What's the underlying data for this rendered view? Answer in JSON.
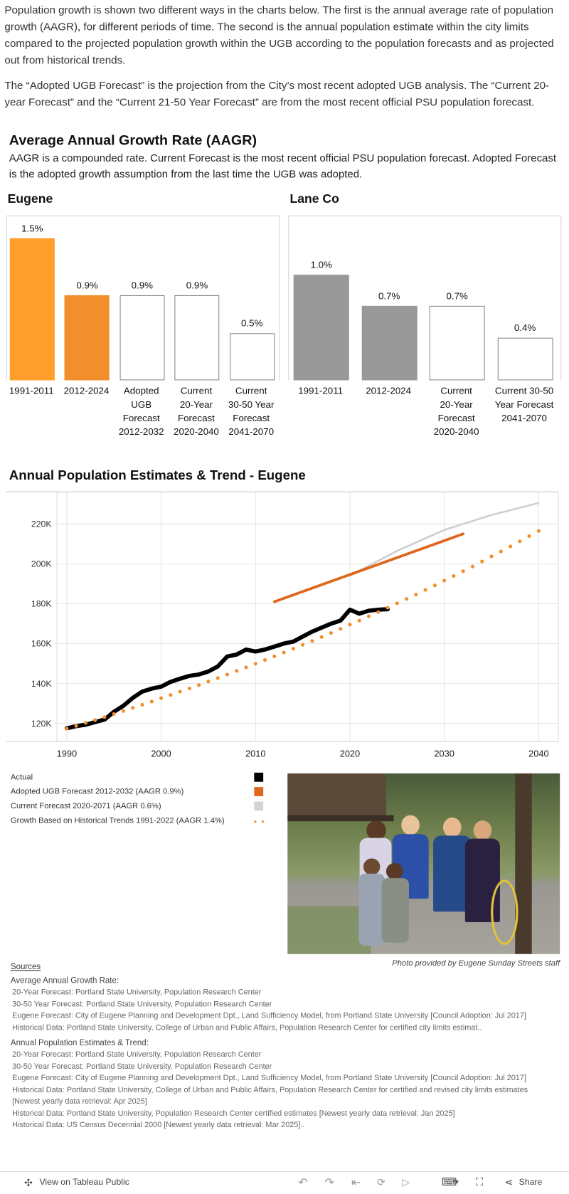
{
  "intro": {
    "paragraph1": "Population growth is shown two different ways in the charts below. The first is the annual average rate of population growth (AAGR), for different periods of time. The second is the annual population estimate within the city limits compared to the projected population growth within the UGB according to the population forecasts and as projected out from historical trends.",
    "paragraph2": "The “Adopted UGB Forecast” is the projection from the City’s most recent adopted UGB analysis. The “Current 20-year Forecast” and the “Current 21-50 Year Forecast” are from the most recent official PSU population forecast."
  },
  "aagr": {
    "title": "Average Annual Growth Rate (AAGR)",
    "description": "AAGR is a compounded rate. Current Forecast is the most recent official PSU population forecast. Adopted Forecast is the adopted growth assumption from the last time the UGB was adopted."
  },
  "chart_data": [
    {
      "type": "bar",
      "title": "Eugene",
      "categories": [
        "1991-2011",
        "2012-2024",
        "Adopted UGB Forecast 2012-2032",
        "Current 20-Year Forecast 2020-2040",
        "Current 30-50 Year Forecast 2041-2070"
      ],
      "category_lines": [
        [
          "1991-2011"
        ],
        [
          "2012-2024"
        ],
        [
          "Adopted",
          "UGB",
          "Forecast",
          "2012-2032"
        ],
        [
          "Current",
          "20-Year",
          "Forecast",
          "2020-2040"
        ],
        [
          "Current",
          "30-50 Year",
          "Forecast",
          "2041-2070"
        ]
      ],
      "values": [
        1.5,
        0.9,
        0.9,
        0.9,
        0.5
      ],
      "labels": [
        "1.5%",
        "0.9%",
        "0.9%",
        "0.9%",
        "0.5%"
      ],
      "colors": [
        "#FF9E2A",
        "#F28E2B",
        "#FFFFFF",
        "#FFFFFF",
        "#FFFFFF"
      ],
      "ylim": [
        0,
        1.73
      ]
    },
    {
      "type": "bar",
      "title": "Lane Co",
      "categories": [
        "1991-2011",
        "2012-2024",
        "Current 20-Year Forecast 2020-2040",
        "Current 30-50 Year Forecast 2041-2070"
      ],
      "category_lines": [
        [
          "1991-2011"
        ],
        [
          "2012-2024"
        ],
        [
          "Current",
          "20-Year",
          "Forecast",
          "2020-2040"
        ],
        [
          "Current 30-50",
          "Year Forecast",
          "2041-2070"
        ]
      ],
      "values": [
        1.0,
        0.7,
        0.7,
        0.4
      ],
      "labels": [
        "1.0%",
        "0.7%",
        "0.7%",
        "0.4%"
      ],
      "colors": [
        "#999999",
        "#999999",
        "#FFFFFF",
        "#FFFFFF"
      ],
      "ylim": [
        0,
        1.55
      ]
    },
    {
      "type": "line",
      "title": "Annual Population Estimates & Trend - Eugene",
      "xlim": [
        1986.9,
        2042
      ],
      "ylim": [
        115700,
        241000
      ],
      "xticks": [
        1990,
        2000,
        2010,
        2020,
        2030,
        2040
      ],
      "xtick_labels": [
        "1990",
        "2000",
        "2010",
        "2020",
        "2030",
        "2040"
      ],
      "yticks": [
        120000,
        140000,
        160000,
        180000,
        200000,
        220000
      ],
      "ytick_labels": [
        "120K",
        "140K",
        "160K",
        "180K",
        "200K",
        "220K"
      ],
      "grid": true,
      "series": [
        {
          "name": "Actual",
          "color": "#000000",
          "style": "solid-thick",
          "x": [
            1990,
            1991,
            1992,
            1993,
            1994,
            1995,
            1996,
            1997,
            1998,
            1999,
            2000,
            2001,
            2002,
            2003,
            2004,
            2005,
            2006,
            2007,
            2008,
            2009,
            2010,
            2011,
            2012,
            2013,
            2014,
            2015,
            2016,
            2017,
            2018,
            2019,
            2020,
            2021,
            2022,
            2023,
            2024
          ],
          "y": [
            117500,
            118600,
            119300,
            120600,
            121900,
            125800,
            128800,
            132800,
            135900,
            137400,
            138400,
            140800,
            142400,
            143800,
            144500,
            146000,
            148500,
            153500,
            154500,
            157000,
            156000,
            157000,
            158500,
            160000,
            161000,
            163500,
            166000,
            168000,
            170000,
            171500,
            177000,
            175000,
            176500,
            177000,
            177200
          ]
        },
        {
          "name": "Adopted UGB Forecast 2012-2032 (AAGR 0.9%)",
          "color": "#E0661C",
          "style": "solid",
          "x": [
            2012,
            2032
          ],
          "y": [
            181000,
            215000
          ]
        },
        {
          "name": "Current Forecast 2020-2071 (AAGR 0.6%)",
          "color": "#CFCFCF",
          "style": "solid",
          "x": [
            2020,
            2025,
            2030,
            2035,
            2040
          ],
          "y": [
            194000,
            206500,
            217000,
            224500,
            230500
          ]
        },
        {
          "name": "Growth Based on Historical Trends 1991-2022 (AAGR 1.4%)",
          "color": "#F28E2B",
          "style": "dotted",
          "x": [
            1990,
            1991,
            1992,
            1993,
            1994,
            1995,
            1996,
            1997,
            1998,
            1999,
            2000,
            2001,
            2002,
            2003,
            2004,
            2005,
            2006,
            2007,
            2008,
            2009,
            2010,
            2011,
            2012,
            2013,
            2014,
            2015,
            2016,
            2017,
            2018,
            2019,
            2020,
            2021,
            2022,
            2023,
            2024,
            2025,
            2026,
            2027,
            2028,
            2029,
            2030,
            2031,
            2032,
            2033,
            2034,
            2035,
            2036,
            2037,
            2038,
            2039,
            2040
          ],
          "y": [
            117300,
            118700,
            120200,
            121600,
            123100,
            124700,
            126200,
            127800,
            129300,
            130900,
            132600,
            134200,
            135900,
            137500,
            139200,
            141000,
            142700,
            144500,
            146300,
            148100,
            149900,
            151800,
            153600,
            155500,
            157400,
            159400,
            161300,
            163300,
            165300,
            167400,
            169500,
            171500,
            173700,
            175800,
            178000,
            180200,
            182400,
            184600,
            186900,
            189200,
            191600,
            193900,
            196300,
            198700,
            201200,
            203700,
            206200,
            208700,
            211300,
            213900,
            216500
          ]
        }
      ]
    }
  ],
  "legend": {
    "items": [
      {
        "label": "Actual",
        "color": "#000000",
        "style": "square"
      },
      {
        "label": "Adopted UGB Forecast 2012-2032 (AAGR 0.9%)",
        "color": "#E0661C",
        "style": "square"
      },
      {
        "label": "Current Forecast 2020-2071 (AAGR 0.6%)",
        "color": "#D3D3D3",
        "style": "square"
      },
      {
        "label": "Growth Based on Historical Trends 1991-2022 (AAGR 1.4%)",
        "color": "#F28E2B",
        "style": "dots"
      }
    ]
  },
  "photo": {
    "caption": "Photo provided by Eugene Sunday Streets staff"
  },
  "sources": {
    "title": "Sources",
    "aagr_heading": "Average Annual Growth Rate:",
    "aagr_lines": [
      "20-Year Forecast: Portland State University, Population Research Center",
      "30-50 Year Forecast: Portland State University, Population Research Center",
      "Eugene Forecast: City of Eugene Planning and Development Dpt., Land Sufficiency Model, from Portland State University [Council Adoption: Jul 2017]",
      "Historical Data: Portland State University, College of Urban and Public Affairs, Population Research Center for certified city limits estimat.."
    ],
    "ape_heading": "Annual Population Estimates & Trend:",
    "ape_lines": [
      "20-Year Forecast: Portland State University, Population Research Center",
      "30-50 Year Forecast: Portland State University, Population Research Center",
      "Eugene Forecast: City of Eugene Planning and Development Dpt., Land Sufficiency Model, from Portland State University [Council Adoption: Jul 2017]",
      "Historical Data: Portland State University, College of Urban and Public Affairs, Population Research Center for certified and revised city limits estimates [Newest yearly data retrieval: Apr 2025]",
      "Historical Data: Portland State University, Population Research Center certified estimates [Newest yearly data retrieval: Jan 2025]",
      "Historical Data: US Census Decennial 2000 [Newest yearly data retrieval: Mar 2025].."
    ]
  },
  "toolbar": {
    "view_label": "View on Tableau Public",
    "share_label": "Share"
  }
}
